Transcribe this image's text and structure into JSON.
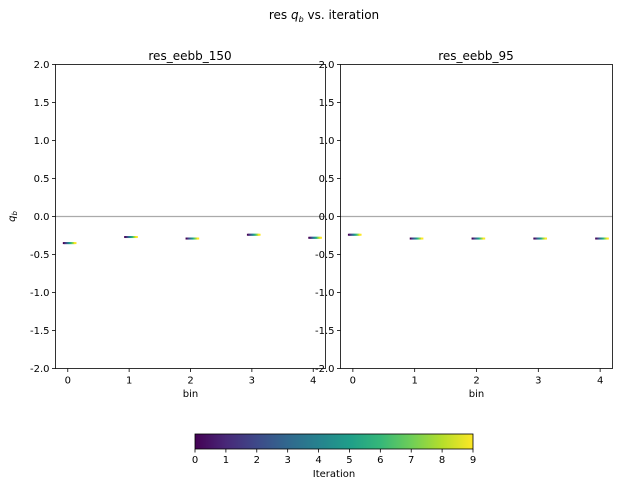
{
  "figure": {
    "suptitle_prefix": "res ",
    "suptitle_var": "q",
    "suptitle_sub": "b",
    "suptitle_suffix": " vs. iteration"
  },
  "chart_data": [
    {
      "type": "scatter",
      "title": "res_eebb_150",
      "xlabel": "bin",
      "ylabel_var": "q",
      "ylabel_sub": "b",
      "ylim": [
        -2.0,
        2.0
      ],
      "xlim": [
        -0.2,
        4.2
      ],
      "yticks": [
        "2.0",
        "1.5",
        "1.0",
        "0.5",
        "0.0",
        "-0.5",
        "-1.0",
        "-1.5",
        "-2.0"
      ],
      "xticks": [
        "0",
        "1",
        "2",
        "3",
        "4"
      ],
      "reference_line_y": 0.0,
      "grid": false,
      "points_by_bin": [
        {
          "bin": 0,
          "values": [
            -0.35,
            -0.35,
            -0.35,
            -0.35,
            -0.35,
            -0.35,
            -0.35,
            -0.35,
            -0.35,
            -0.35
          ]
        },
        {
          "bin": 1,
          "values": [
            -0.27,
            -0.27,
            -0.27,
            -0.27,
            -0.27,
            -0.27,
            -0.27,
            -0.27,
            -0.27,
            -0.27
          ]
        },
        {
          "bin": 2,
          "values": [
            -0.29,
            -0.29,
            -0.29,
            -0.29,
            -0.29,
            -0.29,
            -0.29,
            -0.29,
            -0.29,
            -0.29
          ]
        },
        {
          "bin": 3,
          "values": [
            -0.24,
            -0.24,
            -0.24,
            -0.24,
            -0.24,
            -0.24,
            -0.24,
            -0.24,
            -0.24,
            -0.24
          ]
        },
        {
          "bin": 4,
          "values": [
            -0.28,
            -0.28,
            -0.28,
            -0.28,
            -0.28,
            -0.28,
            -0.28,
            -0.28,
            -0.28,
            -0.28
          ]
        }
      ]
    },
    {
      "type": "scatter",
      "title": "res_eebb_95",
      "xlabel": "bin",
      "ylim": [
        -2.0,
        2.0
      ],
      "xlim": [
        -0.2,
        4.2
      ],
      "yticks": [
        "2.0",
        "1.5",
        "1.0",
        "0.5",
        "0.0",
        "-0.5",
        "-1.0",
        "-1.5",
        "-2.0"
      ],
      "xticks": [
        "0",
        "1",
        "2",
        "3",
        "4"
      ],
      "reference_line_y": 0.0,
      "grid": false,
      "points_by_bin": [
        {
          "bin": 0,
          "values": [
            -0.24,
            -0.24,
            -0.24,
            -0.24,
            -0.24,
            -0.24,
            -0.24,
            -0.24,
            -0.24,
            -0.24
          ]
        },
        {
          "bin": 1,
          "values": [
            -0.29,
            -0.29,
            -0.29,
            -0.29,
            -0.29,
            -0.29,
            -0.29,
            -0.29,
            -0.29,
            -0.29
          ]
        },
        {
          "bin": 2,
          "values": [
            -0.29,
            -0.29,
            -0.29,
            -0.29,
            -0.29,
            -0.29,
            -0.29,
            -0.29,
            -0.29,
            -0.29
          ]
        },
        {
          "bin": 3,
          "values": [
            -0.29,
            -0.29,
            -0.29,
            -0.29,
            -0.29,
            -0.29,
            -0.29,
            -0.29,
            -0.29,
            -0.29
          ]
        },
        {
          "bin": 4,
          "values": [
            -0.29,
            -0.29,
            -0.29,
            -0.29,
            -0.29,
            -0.29,
            -0.29,
            -0.29,
            -0.29,
            -0.29
          ]
        }
      ]
    }
  ],
  "colorbar": {
    "label": "Iteration",
    "colormap": "viridis",
    "range": [
      0,
      9
    ],
    "ticks": [
      "0",
      "1",
      "2",
      "3",
      "4",
      "5",
      "6",
      "7",
      "8",
      "9"
    ],
    "colors": [
      "#440154",
      "#482878",
      "#3e4989",
      "#31688e",
      "#26828e",
      "#1f9e89",
      "#35b779",
      "#6ece58",
      "#b5de2b",
      "#fde725"
    ]
  },
  "styles": {
    "reference_line_color": "#aaaaaa",
    "axis_color": "#000000"
  }
}
